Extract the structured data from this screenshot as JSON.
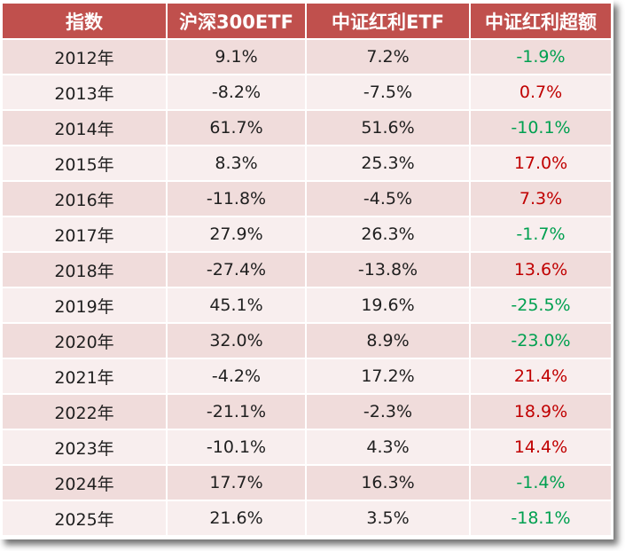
{
  "table": {
    "headers": [
      "指数",
      "沪深300ETF",
      "中证红利ETF",
      "中证红利超额"
    ],
    "rows": [
      {
        "year": "2012年",
        "hs300": "9.1%",
        "dividend": "7.2%",
        "excess": "-1.9%"
      },
      {
        "year": "2013年",
        "hs300": "-8.2%",
        "dividend": "-7.5%",
        "excess": "0.7%"
      },
      {
        "year": "2014年",
        "hs300": "61.7%",
        "dividend": "51.6%",
        "excess": "-10.1%"
      },
      {
        "year": "2015年",
        "hs300": "8.3%",
        "dividend": "25.3%",
        "excess": "17.0%"
      },
      {
        "year": "2016年",
        "hs300": "-11.8%",
        "dividend": "-4.5%",
        "excess": "7.3%"
      },
      {
        "year": "2017年",
        "hs300": "27.9%",
        "dividend": "26.3%",
        "excess": "-1.7%"
      },
      {
        "year": "2018年",
        "hs300": "-27.4%",
        "dividend": "-13.8%",
        "excess": "13.6%"
      },
      {
        "year": "2019年",
        "hs300": "45.1%",
        "dividend": "19.6%",
        "excess": "-25.5%"
      },
      {
        "year": "2020年",
        "hs300": "32.0%",
        "dividend": "8.9%",
        "excess": "-23.0%"
      },
      {
        "year": "2021年",
        "hs300": "-4.2%",
        "dividend": "17.2%",
        "excess": "21.4%"
      },
      {
        "year": "2022年",
        "hs300": "-21.1%",
        "dividend": "-2.3%",
        "excess": "18.9%"
      },
      {
        "year": "2023年",
        "hs300": "-10.1%",
        "dividend": "4.3%",
        "excess": "14.4%"
      },
      {
        "year": "2024年",
        "hs300": "17.7%",
        "dividend": "16.3%",
        "excess": "-1.4%"
      },
      {
        "year": "2025年",
        "hs300": "21.6%",
        "dividend": "3.5%",
        "excess": "-18.1%"
      }
    ]
  },
  "colors": {
    "header_bg": "#c0504d",
    "row_bg_a": "#f0dcdb",
    "row_bg_b": "#f8eeee",
    "positive": "#c00000",
    "negative": "#00a050"
  }
}
